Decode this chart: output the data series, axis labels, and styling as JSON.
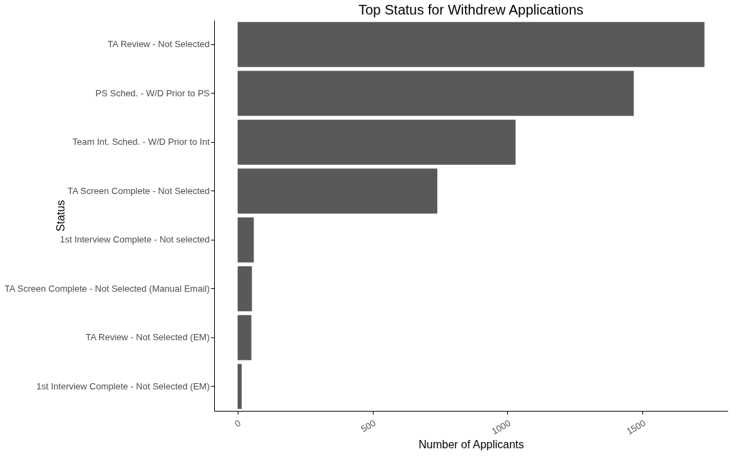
{
  "chart_data": {
    "type": "bar",
    "orientation": "horizontal",
    "title": "Top Status for Withdrew Applications",
    "xlabel": "Number of Applicants",
    "ylabel": "Status",
    "categories": [
      "TA Review - Not Selected",
      "PS Sched. - W/D Prior to PS",
      "Team Int. Sched. - W/D Prior to Int",
      "TA Screen Complete - Not Selected",
      "1st Interview Complete - Not selected",
      "TA Screen Complete - Not Selected (Manual Email)",
      "TA Review - Not Selected (EM)",
      "1st Interview Complete - Not Selected (EM)"
    ],
    "values": [
      1730,
      1468,
      1030,
      740,
      60,
      53,
      51,
      15
    ],
    "color": "#595959",
    "xlim": [
      -87,
      1816
    ],
    "xticks": [
      0,
      500,
      1000,
      1500
    ],
    "grid": false
  }
}
